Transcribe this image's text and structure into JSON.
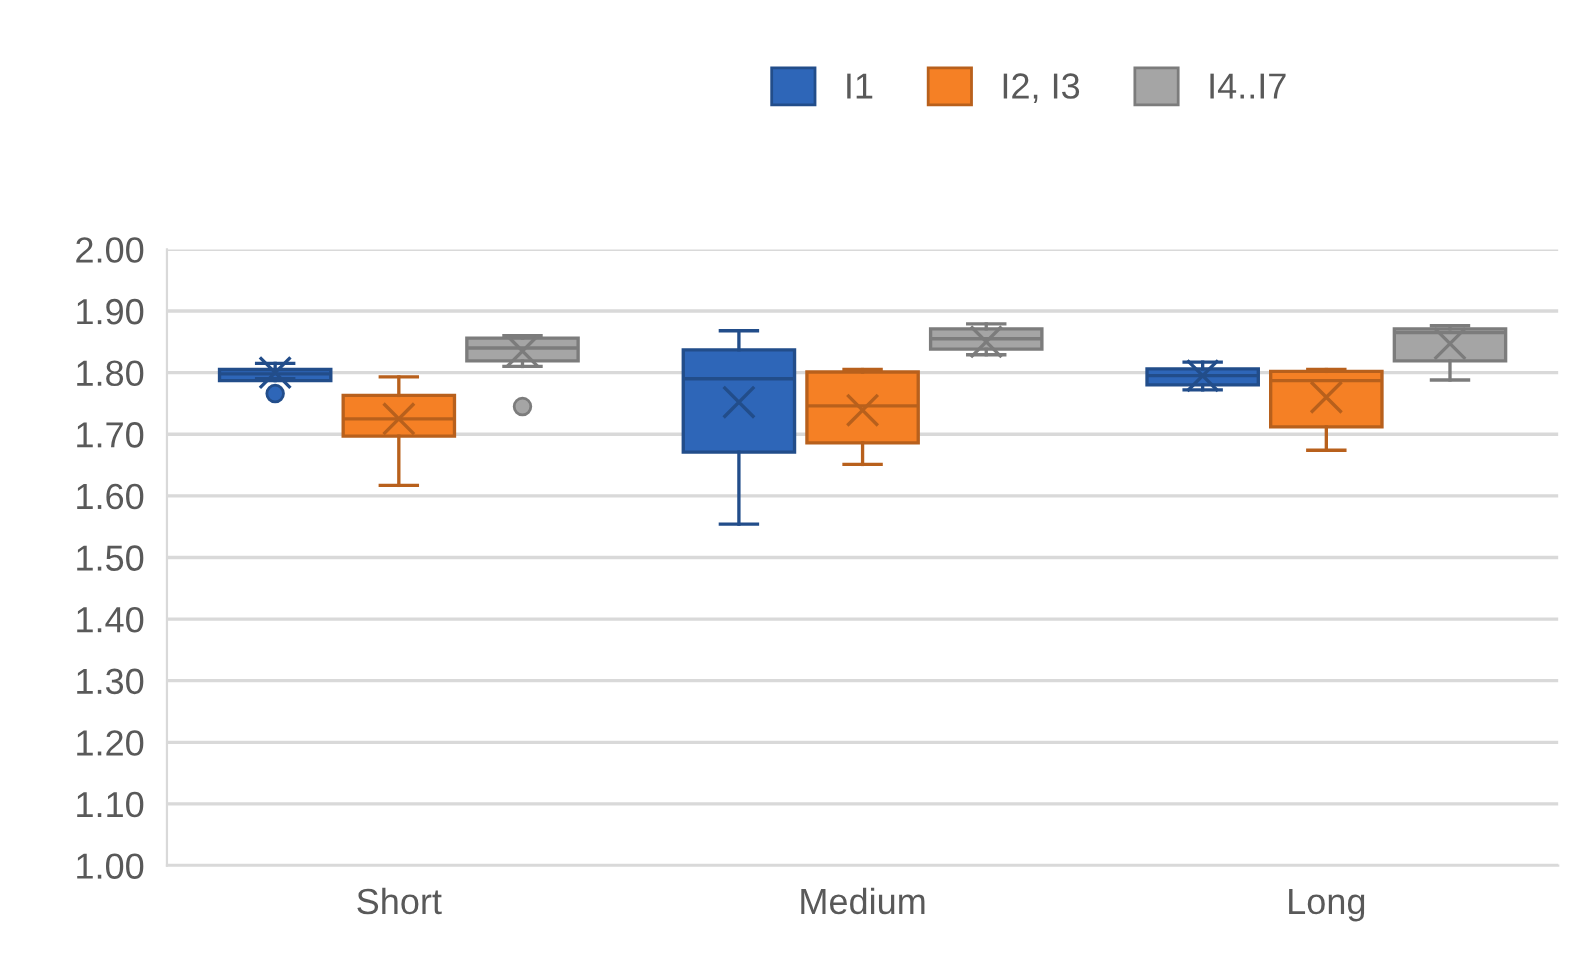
{
  "chart_data": {
    "type": "box",
    "categories": [
      "Short",
      "Medium",
      "Long"
    ],
    "ylim": [
      1.0,
      2.0
    ],
    "yticks": [
      {
        "value": 1.0,
        "label": "1.00"
      },
      {
        "value": 1.1,
        "label": "1.10"
      },
      {
        "value": 1.2,
        "label": "1.20"
      },
      {
        "value": 1.3,
        "label": "1.30"
      },
      {
        "value": 1.4,
        "label": "1.40"
      },
      {
        "value": 1.5,
        "label": "1.50"
      },
      {
        "value": 1.6,
        "label": "1.60"
      },
      {
        "value": 1.7,
        "label": "1.70"
      },
      {
        "value": 1.8,
        "label": "1.80"
      },
      {
        "value": 1.9,
        "label": "1.90"
      },
      {
        "value": 2.0,
        "label": "2.00"
      }
    ],
    "grid": "y",
    "legend": "top",
    "series": [
      {
        "name": "I1",
        "color": "#2e66b8",
        "boxes": [
          {
            "low": 1.79,
            "q1": 1.787,
            "median": 1.798,
            "q3": 1.805,
            "high": 1.815,
            "mean": 1.8,
            "outliers": [
              1.766
            ]
          },
          {
            "low": 1.554,
            "q1": 1.671,
            "median": 1.79,
            "q3": 1.837,
            "high": 1.868,
            "mean": 1.752
          },
          {
            "low": 1.772,
            "q1": 1.78,
            "median": 1.795,
            "q3": 1.806,
            "high": 1.817,
            "mean": 1.795
          }
        ]
      },
      {
        "name": "I2, I3",
        "color": "#f58025",
        "boxes": [
          {
            "low": 1.617,
            "q1": 1.697,
            "median": 1.725,
            "q3": 1.763,
            "high": 1.793,
            "mean": 1.725
          },
          {
            "low": 1.651,
            "q1": 1.686,
            "median": 1.746,
            "q3": 1.801,
            "high": 1.805,
            "mean": 1.739
          },
          {
            "low": 1.674,
            "q1": 1.712,
            "median": 1.787,
            "q3": 1.802,
            "high": 1.805,
            "mean": 1.76
          }
        ]
      },
      {
        "name": "I4..I7",
        "color": "#a5a5a5",
        "boxes": [
          {
            "low": 1.81,
            "q1": 1.819,
            "median": 1.84,
            "q3": 1.856,
            "high": 1.86,
            "mean": 1.835,
            "outliers": [
              1.745
            ]
          },
          {
            "low": 1.829,
            "q1": 1.838,
            "median": 1.855,
            "q3": 1.871,
            "high": 1.879,
            "mean": 1.85
          },
          {
            "low": 1.788,
            "q1": 1.819,
            "median": 1.865,
            "q3": 1.871,
            "high": 1.876,
            "mean": 1.847
          }
        ]
      }
    ]
  }
}
